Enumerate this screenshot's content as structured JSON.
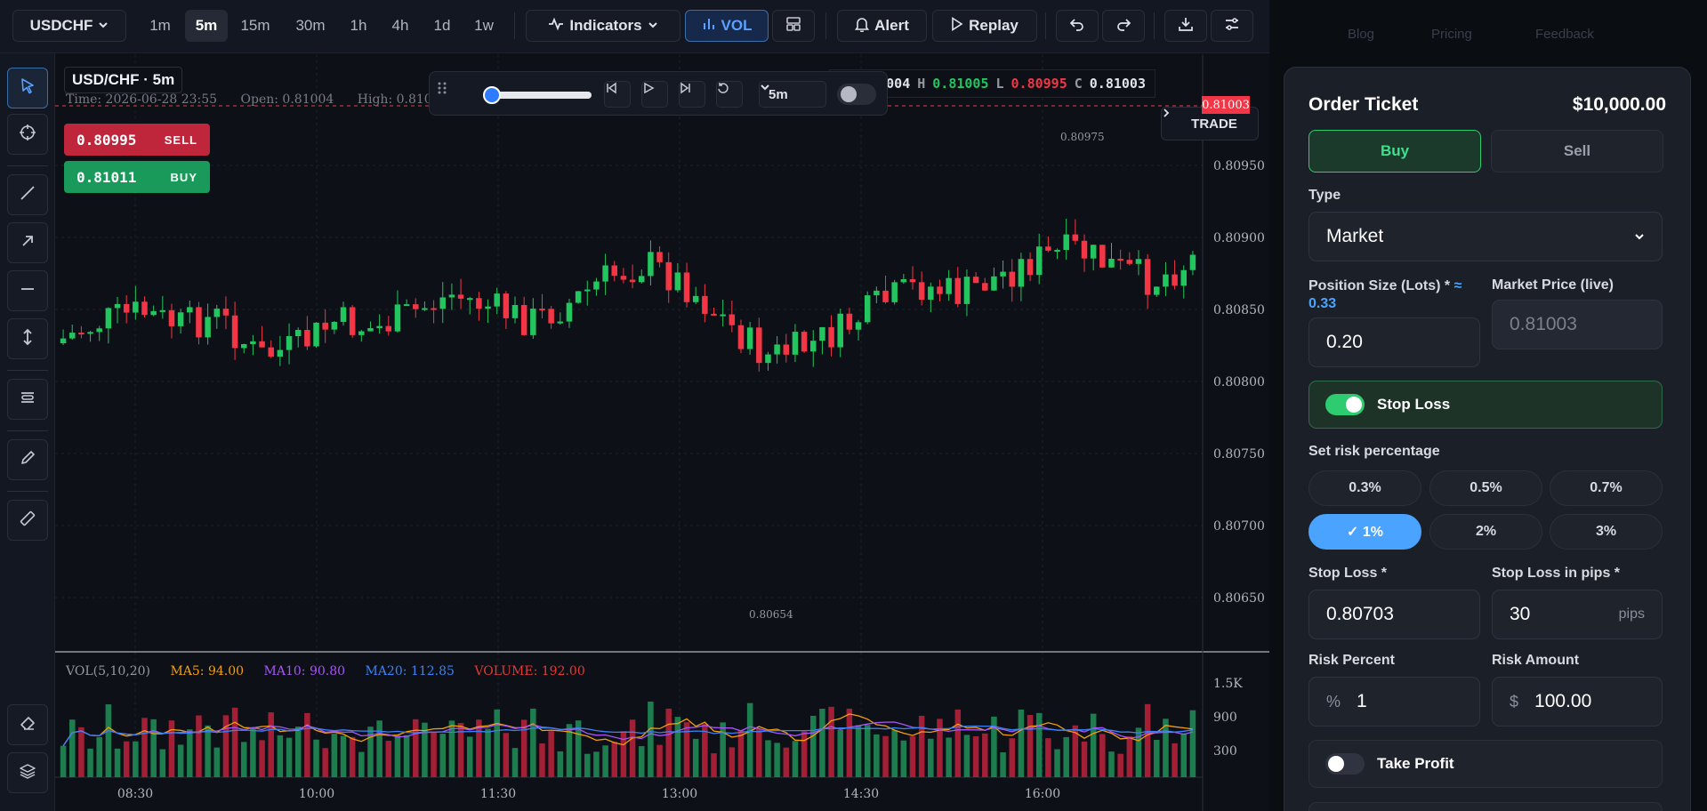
{
  "toolbar": {
    "symbol": "USDCHF",
    "intervals": [
      "1m",
      "5m",
      "15m",
      "30m",
      "1h",
      "4h",
      "1d",
      "1w"
    ],
    "active_interval": "5m",
    "indicators_label": "Indicators",
    "vol_label": "VOL",
    "alert_label": "Alert",
    "replay_label": "Replay"
  },
  "chart": {
    "title": "USD/CHF · 5m",
    "info": {
      "time_label": "Time: 2026-06-28 23:55",
      "open_label": "Open: 0.81004",
      "high_label": "High: 0.81005"
    },
    "sell_price": "0.80995",
    "sell_label": "SELL",
    "buy_price": "0.81011",
    "buy_label": "BUY",
    "replay_interval": "5m",
    "ohlc": {
      "o_key": "O",
      "o": "0.81004",
      "h_key": "H",
      "h": "0.81005",
      "l_key": "L",
      "l": "0.80995",
      "c_key": "C",
      "c": "0.81003"
    },
    "trade_label": "TRADE",
    "last_price_tag": "0.81003",
    "price_axis": [
      "0.80950",
      "0.80900",
      "0.80850",
      "0.80800",
      "0.80750",
      "0.80700",
      "0.80650"
    ],
    "high_marker": "0.80975",
    "low_marker": "0.80654",
    "time_axis": [
      "08:30",
      "10:00",
      "11:30",
      "13:00",
      "14:30",
      "16:00"
    ],
    "vol_legend": {
      "name": "VOL(5,10,20)",
      "ma5": "MA5: 94.00",
      "ma10": "MA10: 90.80",
      "ma20": "MA20: 112.85",
      "volume": "VOLUME: 192.00"
    },
    "vol_axis": [
      "1.5K",
      "900",
      "300"
    ],
    "colors": {
      "up": "#22c55e",
      "down": "#f23645",
      "ma5": "#f59e0b",
      "ma10": "#a855f7",
      "ma20": "#3b82f6",
      "volume": "#e53935"
    }
  },
  "nav_ghost": [
    "Blog",
    "Pricing",
    "Feedback"
  ],
  "ticket": {
    "title": "Order Ticket",
    "balance": "$10,000.00",
    "buy_label": "Buy",
    "sell_label": "Sell",
    "type_label": "Type",
    "type_value": "Market",
    "position_label": "Position Size (Lots) *",
    "position_hint": "≈ 0.33",
    "position_value": "0.20",
    "market_price_label": "Market Price (live)",
    "market_price_value": "0.81003",
    "stop_loss_toggle": "Stop Loss",
    "risk_pct_label": "Set risk percentage",
    "risk_chips": [
      "0.3%",
      "0.5%",
      "0.7%",
      "✓ 1%",
      "2%",
      "3%"
    ],
    "stop_loss_label": "Stop Loss *",
    "stop_loss_value": "0.80703",
    "sl_pips_label": "Stop Loss in pips *",
    "sl_pips_value": "30",
    "sl_pips_suffix": "pips",
    "risk_percent_label": "Risk Percent",
    "risk_percent_prefix": "%",
    "risk_percent_value": "1",
    "risk_amount_label": "Risk Amount",
    "risk_amount_prefix": "$",
    "risk_amount_value": "100.00",
    "take_profit_toggle": "Take Profit"
  }
}
